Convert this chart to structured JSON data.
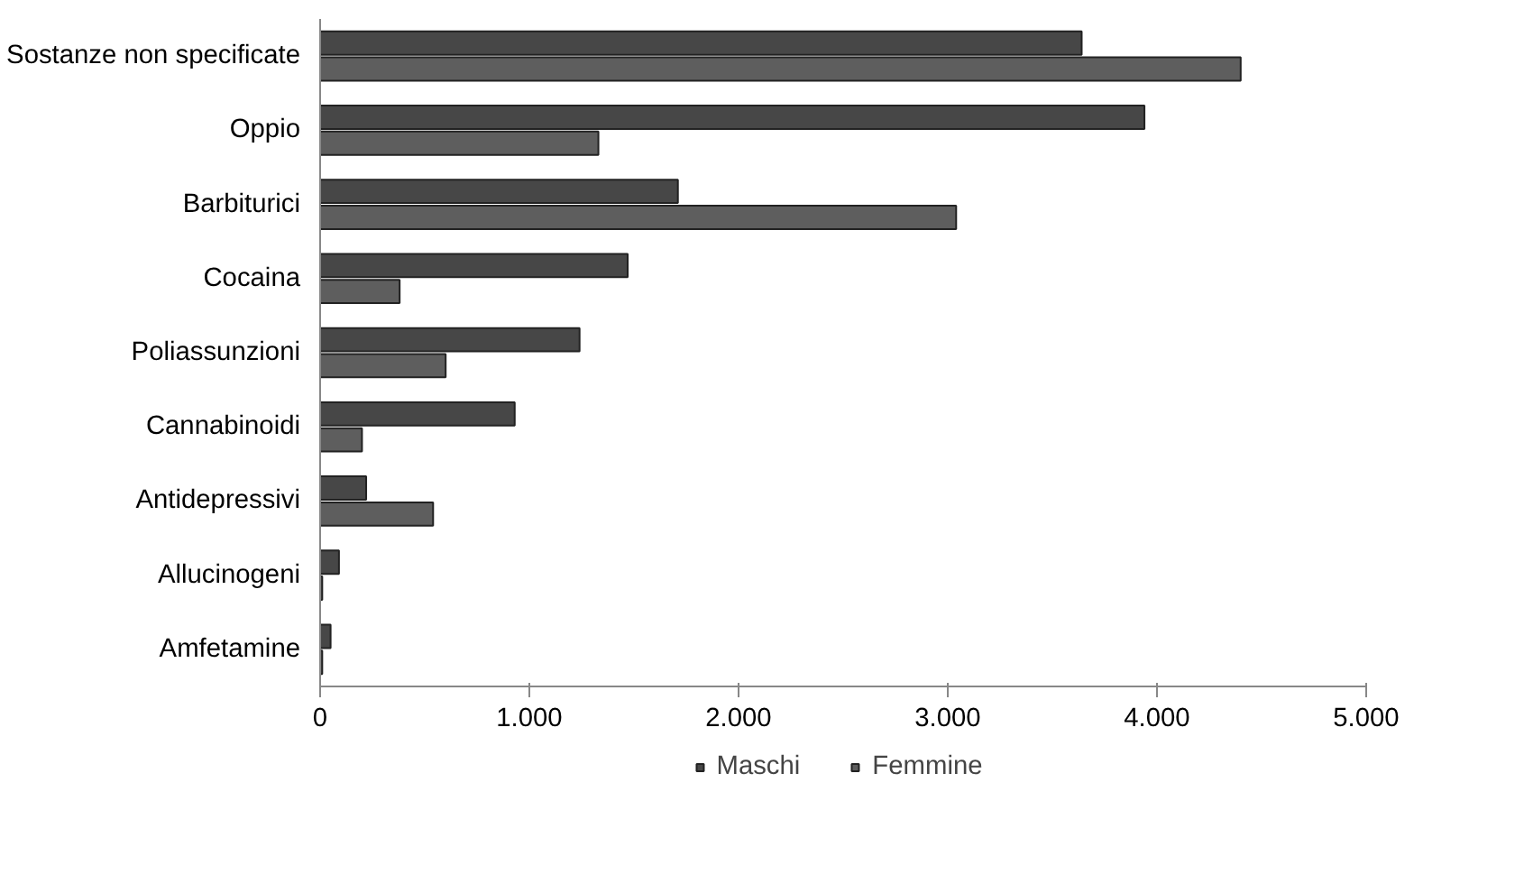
{
  "chart_data": {
    "type": "bar",
    "orientation": "horizontal",
    "categories": [
      "Sostanze non specificate",
      "Oppio",
      "Barbiturici",
      "Cocaina",
      "Poliassunzioni",
      "Cannabinoidi",
      "Antidepressivi",
      "Allucinogeni",
      "Amfetamine"
    ],
    "series": [
      {
        "name": "Maschi",
        "color": "#474747",
        "values": [
          3640,
          3940,
          1710,
          1470,
          1240,
          930,
          220,
          90,
          50
        ]
      },
      {
        "name": "Femmine",
        "color": "#5e5e5e",
        "values": [
          4400,
          1330,
          3040,
          380,
          600,
          200,
          540,
          10,
          10
        ]
      }
    ],
    "xlim": [
      0,
      5000
    ],
    "xticks": [
      {
        "value": 0,
        "label": "0"
      },
      {
        "value": 1000,
        "label": "1.000"
      },
      {
        "value": 2000,
        "label": "2.000"
      },
      {
        "value": 3000,
        "label": "3.000"
      },
      {
        "value": 4000,
        "label": "4.000"
      },
      {
        "value": 5000,
        "label": "5.000"
      }
    ],
    "grid": false,
    "legend": "bottom"
  }
}
